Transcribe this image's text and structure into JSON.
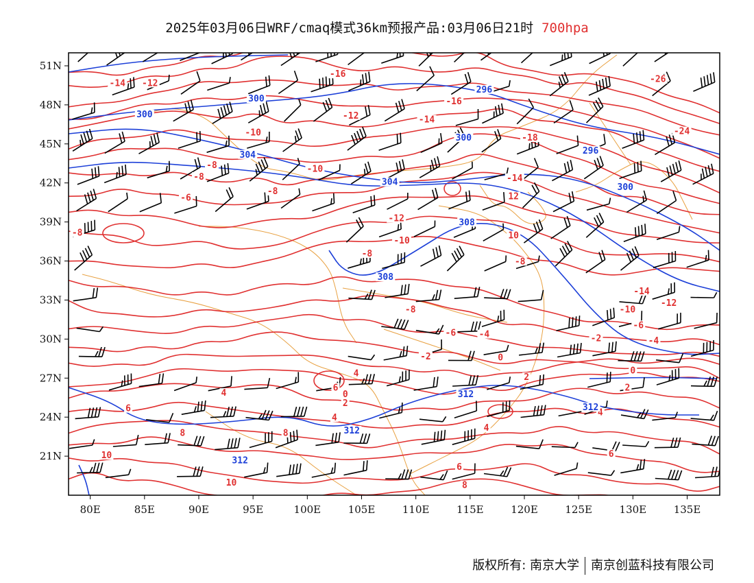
{
  "title": {
    "main": "2025年03月06日WRF/cmaq模式36km预报产品:03月06日21时",
    "level": "700hpa"
  },
  "axes": {
    "lat_labels": [
      "51N",
      "48N",
      "45N",
      "42N",
      "39N",
      "36N",
      "33N",
      "30N",
      "27N",
      "24N",
      "21N"
    ],
    "lon_labels": [
      "80E",
      "85E",
      "90E",
      "95E",
      "100E",
      "105E",
      "110E",
      "115E",
      "120E",
      "125E",
      "130E",
      "135E"
    ]
  },
  "colors": {
    "temperature": "#e03030",
    "height": "#1c3fd8",
    "boundary": "#e8a040",
    "wind": "#000000"
  },
  "chart_data": {
    "type": "map",
    "title": "2025年03月06日WRF/cmaq模式36km预报产品:03月06日21时 700hpa",
    "lon_range": [
      78,
      138
    ],
    "lat_range": [
      18,
      52
    ],
    "temperature_labels": [
      {
        "lon": 82.5,
        "lat": 49.5,
        "value": "-14"
      },
      {
        "lon": 85.5,
        "lat": 49.5,
        "value": "-12"
      },
      {
        "lon": 102.8,
        "lat": 50.2,
        "value": "-16"
      },
      {
        "lon": 95.0,
        "lat": 45.7,
        "value": "-10"
      },
      {
        "lon": 104.0,
        "lat": 47.0,
        "value": "-12"
      },
      {
        "lon": 111.0,
        "lat": 46.7,
        "value": "-14"
      },
      {
        "lon": 113.5,
        "lat": 48.1,
        "value": "-16"
      },
      {
        "lon": 120.5,
        "lat": 45.3,
        "value": "-18"
      },
      {
        "lon": 132.3,
        "lat": 49.8,
        "value": "-26"
      },
      {
        "lon": 134.5,
        "lat": 45.8,
        "value": "-24"
      },
      {
        "lon": 91.2,
        "lat": 43.2,
        "value": "-8"
      },
      {
        "lon": 90.0,
        "lat": 42.3,
        "value": "-8"
      },
      {
        "lon": 88.8,
        "lat": 40.7,
        "value": "-6"
      },
      {
        "lon": 96.8,
        "lat": 41.2,
        "value": "-8"
      },
      {
        "lon": 100.7,
        "lat": 42.9,
        "value": "-10"
      },
      {
        "lon": 108.2,
        "lat": 39.1,
        "value": "-12"
      },
      {
        "lon": 108.7,
        "lat": 37.4,
        "value": "-10"
      },
      {
        "lon": 119.1,
        "lat": 42.2,
        "value": "-14"
      },
      {
        "lon": 119.0,
        "lat": 40.8,
        "value": "12"
      },
      {
        "lon": 119.0,
        "lat": 37.8,
        "value": "10"
      },
      {
        "lon": 78.8,
        "lat": 38.0,
        "value": "-8"
      },
      {
        "lon": 105.5,
        "lat": 36.4,
        "value": "-8"
      },
      {
        "lon": 119.6,
        "lat": 35.8,
        "value": "-8"
      },
      {
        "lon": 109.5,
        "lat": 32.1,
        "value": "-8"
      },
      {
        "lon": 130.8,
        "lat": 33.5,
        "value": "-14"
      },
      {
        "lon": 133.3,
        "lat": 32.6,
        "value": "-12"
      },
      {
        "lon": 129.5,
        "lat": 32.1,
        "value": "-10"
      },
      {
        "lon": 113.2,
        "lat": 30.3,
        "value": "-6"
      },
      {
        "lon": 116.3,
        "lat": 30.2,
        "value": "-4"
      },
      {
        "lon": 130.5,
        "lat": 30.9,
        "value": "-6"
      },
      {
        "lon": 126.6,
        "lat": 29.9,
        "value": "-2"
      },
      {
        "lon": 131.9,
        "lat": 29.7,
        "value": "-4"
      },
      {
        "lon": 110.9,
        "lat": 28.5,
        "value": "-2"
      },
      {
        "lon": 117.8,
        "lat": 28.4,
        "value": "0"
      },
      {
        "lon": 130.0,
        "lat": 27.4,
        "value": "0"
      },
      {
        "lon": 120.2,
        "lat": 26.9,
        "value": "2"
      },
      {
        "lon": 129.5,
        "lat": 26.1,
        "value": "2"
      },
      {
        "lon": 104.5,
        "lat": 27.2,
        "value": "4"
      },
      {
        "lon": 103.5,
        "lat": 25.6,
        "value": "0"
      },
      {
        "lon": 103.5,
        "lat": 24.9,
        "value": "2"
      },
      {
        "lon": 92.3,
        "lat": 25.7,
        "value": "4"
      },
      {
        "lon": 102.6,
        "lat": 26.1,
        "value": "6"
      },
      {
        "lon": 102.5,
        "lat": 23.8,
        "value": "4"
      },
      {
        "lon": 83.5,
        "lat": 24.5,
        "value": "6"
      },
      {
        "lon": 88.5,
        "lat": 22.6,
        "value": "8"
      },
      {
        "lon": 98.0,
        "lat": 22.6,
        "value": "8"
      },
      {
        "lon": 116.5,
        "lat": 23.0,
        "value": "4"
      },
      {
        "lon": 127.0,
        "lat": 24.2,
        "value": "4"
      },
      {
        "lon": 81.5,
        "lat": 20.9,
        "value": "10"
      },
      {
        "lon": 93.0,
        "lat": 18.8,
        "value": "10"
      },
      {
        "lon": 114.0,
        "lat": 20.0,
        "value": "6"
      },
      {
        "lon": 128.0,
        "lat": 21.0,
        "value": "6"
      },
      {
        "lon": 114.5,
        "lat": 18.6,
        "value": "8"
      },
      {
        "lon": 109.5,
        "lat": 16.8,
        "value": "8"
      }
    ],
    "height_labels": [
      {
        "lon": 95.5,
        "lat": 52.2,
        "value": "296"
      },
      {
        "lon": 95.3,
        "lat": 48.3,
        "value": "300"
      },
      {
        "lon": 85.0,
        "lat": 47.1,
        "value": "300"
      },
      {
        "lon": 116.3,
        "lat": 49.0,
        "value": "296"
      },
      {
        "lon": 114.4,
        "lat": 45.3,
        "value": "300"
      },
      {
        "lon": 126.1,
        "lat": 44.3,
        "value": "296"
      },
      {
        "lon": 94.5,
        "lat": 44.0,
        "value": "304"
      },
      {
        "lon": 107.6,
        "lat": 41.9,
        "value": "304"
      },
      {
        "lon": 129.3,
        "lat": 41.5,
        "value": "300"
      },
      {
        "lon": 114.7,
        "lat": 38.8,
        "value": "308"
      },
      {
        "lon": 107.2,
        "lat": 34.6,
        "value": "308"
      },
      {
        "lon": 114.6,
        "lat": 25.6,
        "value": "312"
      },
      {
        "lon": 126.1,
        "lat": 24.6,
        "value": "312"
      },
      {
        "lon": 104.1,
        "lat": 22.8,
        "value": "312"
      },
      {
        "lon": 93.8,
        "lat": 20.5,
        "value": "312"
      }
    ]
  },
  "footer": {
    "copyright": "版权所有: 南京大学",
    "company": "南京创蓝科技有限公司"
  }
}
